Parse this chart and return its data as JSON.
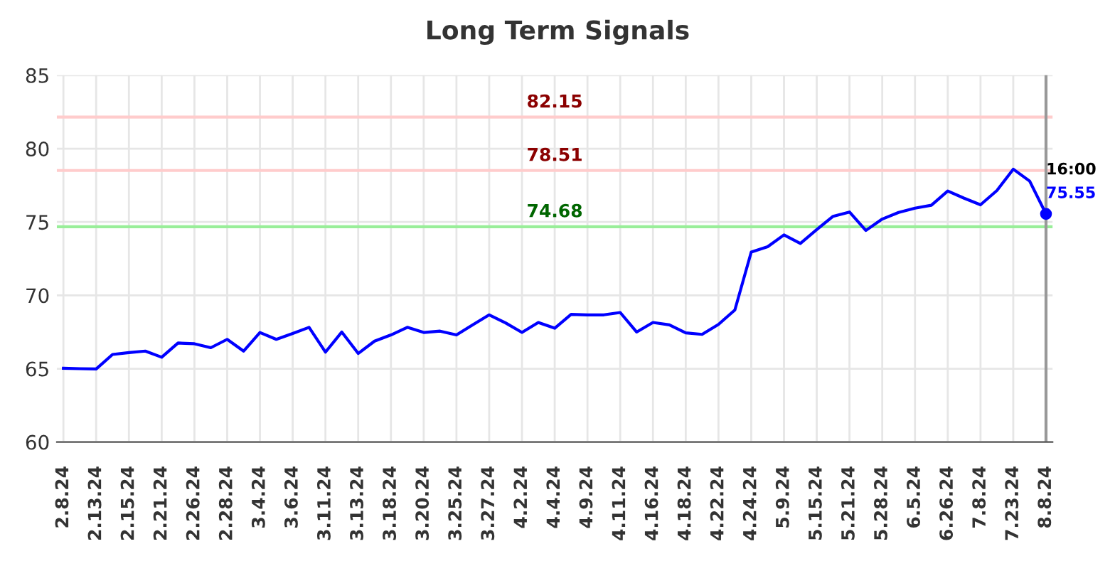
{
  "chart_data": {
    "type": "line",
    "title": "Long Term Signals",
    "categories": [
      "2.8.24",
      null,
      "2.13.24",
      null,
      "2.15.24",
      null,
      "2.21.24",
      null,
      "2.26.24",
      null,
      "2.28.24",
      null,
      "3.4.24",
      null,
      "3.6.24",
      null,
      "3.11.24",
      null,
      "3.13.24",
      null,
      "3.18.24",
      null,
      "3.20.24",
      null,
      "3.25.24",
      null,
      "3.27.24",
      null,
      "4.2.24",
      null,
      "4.4.24",
      null,
      "4.9.24",
      null,
      "4.11.24",
      null,
      "4.16.24",
      null,
      "4.18.24",
      null,
      "4.22.24",
      null,
      "4.24.24",
      null,
      "5.9.24",
      null,
      "5.15.24",
      null,
      "5.21.24",
      null,
      "5.28.24",
      null,
      "6.5.24",
      null,
      "6.26.24",
      null,
      "7.8.24",
      null,
      "7.23.24",
      null,
      "8.8.24"
    ],
    "series": [
      {
        "color": "#0000ff",
        "values": [
          65.03,
          65.0,
          64.98,
          65.97,
          66.1,
          66.2,
          65.78,
          66.75,
          66.7,
          66.43,
          67.0,
          66.2,
          67.47,
          67.0,
          67.4,
          67.82,
          66.13,
          67.5,
          66.04,
          66.88,
          67.3,
          67.82,
          67.47,
          67.56,
          67.3,
          67.99,
          68.67,
          68.12,
          67.47,
          68.15,
          67.76,
          68.7,
          68.67,
          68.67,
          68.83,
          67.5,
          68.15,
          67.99,
          67.44,
          67.34,
          68.02,
          69.0,
          72.95,
          73.31,
          74.12,
          73.54,
          74.48,
          75.39,
          75.68,
          74.42,
          75.2,
          75.65,
          75.94,
          76.14,
          77.11,
          76.62,
          76.17,
          77.14,
          78.6,
          77.79,
          75.55
        ]
      }
    ],
    "ylim": [
      60,
      85
    ],
    "yticks": [
      60,
      65,
      70,
      75,
      80,
      85
    ],
    "grid": true,
    "marker": "none",
    "line_style": "solid",
    "legend": false,
    "ref_lines": [
      {
        "axis": "y",
        "value": 82.15,
        "label": "82.15",
        "color": "#ffcccc"
      },
      {
        "axis": "y",
        "value": 78.51,
        "label": "78.51",
        "color": "#ffcccc"
      },
      {
        "axis": "y",
        "value": 74.68,
        "label": "74.68",
        "color": "#99ee99"
      },
      {
        "axis": "x",
        "value": "8.8.24",
        "color": "#999999"
      }
    ],
    "annotations": [
      {
        "text": "16:00",
        "x": "8.8.24",
        "y": 75.55
      },
      {
        "text": "75.55",
        "x": "8.8.24",
        "y": 75.55
      }
    ]
  }
}
